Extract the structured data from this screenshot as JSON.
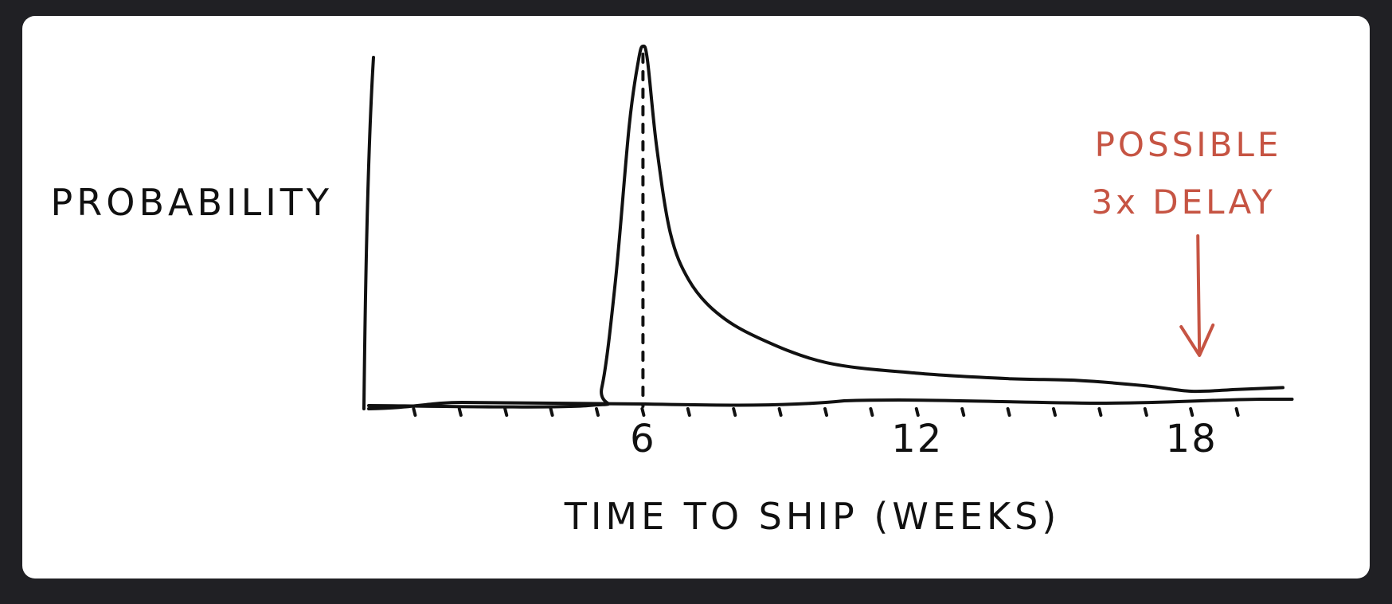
{
  "chart_data": {
    "type": "line",
    "title": "",
    "xlabel": "TIME TO SHIP (WEEKS)",
    "ylabel": "PROBABILITY",
    "x_tick_labels": [
      {
        "value": 6,
        "label": "6"
      },
      {
        "value": 12,
        "label": "12"
      },
      {
        "value": 18,
        "label": "18"
      }
    ],
    "xlim": [
      0,
      20
    ],
    "ylim": [
      0,
      1
    ],
    "grid": false,
    "series": [
      {
        "x": [
          0,
          4.8,
          5.1,
          5.4,
          5.7,
          5.9,
          6.0,
          6.1,
          6.3,
          6.6,
          7.0,
          7.6,
          8.5,
          10.0,
          12.0,
          14.0,
          15.5,
          17.0,
          18.0,
          19.0,
          20.0
        ],
        "values": [
          0,
          0,
          0.05,
          0.35,
          0.78,
          0.96,
          1.0,
          0.96,
          0.72,
          0.48,
          0.35,
          0.26,
          0.19,
          0.12,
          0.09,
          0.075,
          0.07,
          0.055,
          0.04,
          0.045,
          0.05
        ]
      }
    ],
    "reference_line": {
      "x": 6,
      "style": "dashed"
    },
    "annotations": [
      {
        "text": "POSSIBLE\n3x DELAY",
        "lines": [
          "POSSIBLE",
          "3x DELAY"
        ],
        "x": 18,
        "color": "#c65443",
        "pointer": "down-arrow"
      }
    ],
    "colors": {
      "ink": "#111111",
      "annotation": "#c65443",
      "background": "#202024",
      "card": "#ffffff"
    }
  }
}
